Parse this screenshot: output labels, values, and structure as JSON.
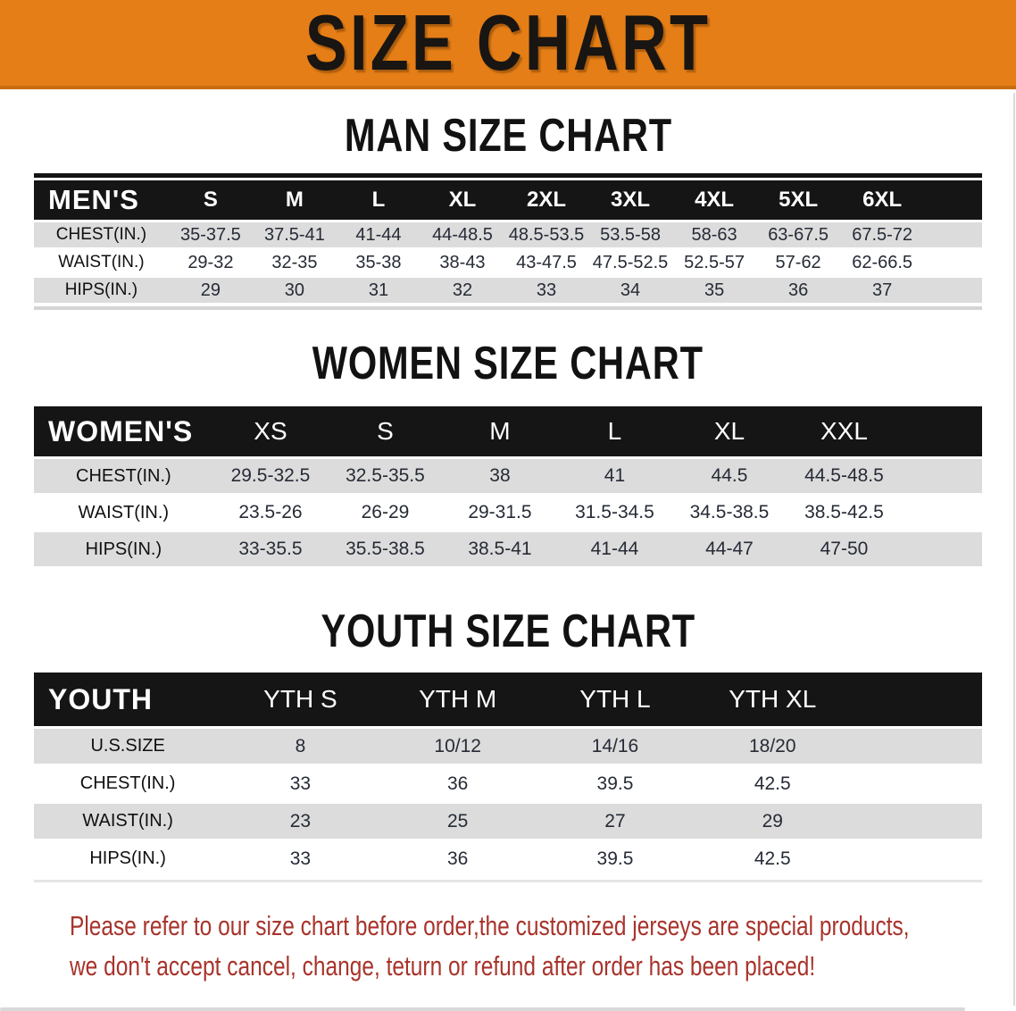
{
  "banner": {
    "title": "SIZE CHART"
  },
  "sections": [
    {
      "heading": "MAN SIZE CHART",
      "table": {
        "header": [
          "MEN'S",
          "S",
          "M",
          "L",
          "XL",
          "2XL",
          "3XL",
          "4XL",
          "5XL",
          "6XL"
        ],
        "rows": [
          {
            "label": "CHEST(IN.)",
            "values": [
              "35-37.5",
              "37.5-41",
              "41-44",
              "44-48.5",
              "48.5-53.5",
              "53.5-58",
              "58-63",
              "63-67.5",
              "67.5-72"
            ]
          },
          {
            "label": "WAIST(IN.)",
            "values": [
              "29-32",
              "32-35",
              "35-38",
              "38-43",
              "43-47.5",
              "47.5-52.5",
              "52.5-57",
              "57-62",
              "62-66.5"
            ]
          },
          {
            "label": "HIPS(IN.)",
            "values": [
              "29",
              "30",
              "31",
              "32",
              "33",
              "34",
              "35",
              "36",
              "37"
            ]
          }
        ]
      }
    },
    {
      "heading": "WOMEN SIZE CHART",
      "table": {
        "header": [
          "WOMEN'S",
          "XS",
          "S",
          "M",
          "L",
          "XL",
          "XXL"
        ],
        "rows": [
          {
            "label": "CHEST(IN.)",
            "values": [
              "29.5-32.5",
              "32.5-35.5",
              "38",
              "41",
              "44.5",
              "44.5-48.5"
            ]
          },
          {
            "label": "WAIST(IN.)",
            "values": [
              "23.5-26",
              "26-29",
              "29-31.5",
              "31.5-34.5",
              "34.5-38.5",
              "38.5-42.5"
            ]
          },
          {
            "label": "HIPS(IN.)",
            "values": [
              "33-35.5",
              "35.5-38.5",
              "38.5-41",
              "41-44",
              "44-47",
              "47-50"
            ]
          }
        ]
      }
    },
    {
      "heading": "YOUTH SIZE CHART",
      "table": {
        "header": [
          "YOUTH",
          "YTH S",
          "YTH M",
          "YTH L",
          "YTH XL"
        ],
        "rows": [
          {
            "label": "U.S.SIZE",
            "values": [
              "8",
              "10/12",
              "14/16",
              "18/20"
            ]
          },
          {
            "label": "CHEST(IN.)",
            "values": [
              "33",
              "36",
              "39.5",
              "42.5"
            ]
          },
          {
            "label": "WAIST(IN.)",
            "values": [
              "23",
              "25",
              "27",
              "29"
            ]
          },
          {
            "label": "HIPS(IN.)",
            "values": [
              "33",
              "36",
              "39.5",
              "42.5"
            ]
          }
        ]
      }
    }
  ],
  "disclaimer": {
    "line1": "Please refer to our size chart before order,the customized jerseys are special products,",
    "line2": "we don't accept cancel, change, teturn or refund after order has been placed!"
  },
  "colors": {
    "banner_orange": "#E57E16",
    "banner_edge": "#C96E10",
    "header_bar_black": "#151515",
    "row_gray": "#DCDCDC",
    "disclaimer_red": "#A8342C"
  }
}
